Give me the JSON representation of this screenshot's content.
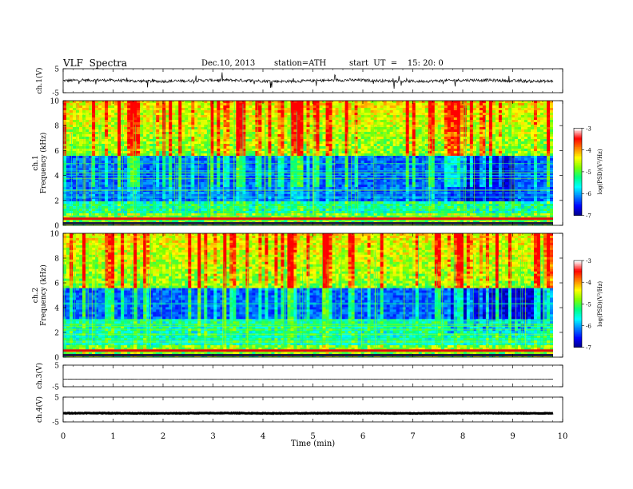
{
  "header": {
    "title": "VLF  Spectra",
    "date": "Dec.10, 2013",
    "station": "station=ATH",
    "start": "start  UT  =    15: 20: 0"
  },
  "chart_data": [
    {
      "type": "line",
      "panel": "ch1-waveform",
      "ylabel": "ch.1(V)",
      "ylim": [
        -5,
        5
      ],
      "yticks": [
        "5",
        "-5"
      ],
      "xlim": [
        0,
        10
      ],
      "series": [
        {
          "values_description_level": 0.0,
          "noise_amplitude": 0.6,
          "spikes": true
        }
      ]
    },
    {
      "type": "heatmap",
      "panel": "ch1-spectrogram",
      "ylabel": "ch.1\nFrequency  (kHz)",
      "ylim": [
        0,
        10
      ],
      "yticks": [
        "0",
        "2",
        "4",
        "6",
        "8",
        "10"
      ],
      "xlim": [
        0,
        9.8
      ],
      "colorbar": {
        "label": "log(PSD)(V²/Hz)",
        "range": [
          -7,
          -3
        ],
        "ticks": [
          "-3",
          "-4",
          "-5",
          "-6",
          "-7"
        ]
      },
      "features": {
        "sferic_band_kHz": [
          5.5,
          10
        ],
        "quiet_band_kHz": [
          2,
          5.5
        ],
        "strong_line_kHz": 0.5,
        "quiet_patch_min": [
          7.75,
          9.05
        ]
      }
    },
    {
      "type": "heatmap",
      "panel": "ch2-spectrogram",
      "ylabel": "ch.2\nFrequency  (kHz)",
      "ylim": [
        0,
        10
      ],
      "yticks": [
        "0",
        "2",
        "4",
        "6",
        "8",
        "10"
      ],
      "xlim": [
        0,
        9.8
      ],
      "colorbar": {
        "label": "log(PSD)(V²/Hz)",
        "range": [
          -7,
          -3
        ],
        "ticks": [
          "-3",
          "-4",
          "-5",
          "-6",
          "-7"
        ]
      },
      "features": {
        "sferic_band_kHz": [
          5.5,
          10
        ],
        "quiet_band_kHz": [
          3,
          5.5
        ],
        "strong_line_kHz": 0.5,
        "quiet_patch_min": [
          7.75,
          9.8
        ]
      }
    },
    {
      "type": "line",
      "panel": "ch3-waveform",
      "ylabel": "ch.3(V)",
      "ylim": [
        -5,
        5
      ],
      "yticks": [
        "5",
        "-5"
      ],
      "xlim": [
        0,
        9.8
      ],
      "series": [
        {
          "level": -1.5,
          "noise_amplitude": 0.05
        }
      ]
    },
    {
      "type": "line",
      "panel": "ch4-waveform",
      "ylabel": "ch.4(V)",
      "ylim": [
        -5,
        5
      ],
      "yticks": [
        "5",
        "-5"
      ],
      "xlim": [
        0,
        9.8
      ],
      "series": [
        {
          "level": -1.5,
          "noise_amplitude": 0.1,
          "thick": true
        }
      ]
    }
  ],
  "xaxis": {
    "label": "Time  (min)",
    "ticks": [
      "0",
      "1",
      "2",
      "3",
      "4",
      "5",
      "6",
      "7",
      "8",
      "9",
      "10"
    ]
  },
  "colors": {
    "colormap": [
      "#000080",
      "#0000ff",
      "#0080ff",
      "#00ffff",
      "#00ff80",
      "#80ff00",
      "#ffff00",
      "#ff8000",
      "#ff0000",
      "#ffffff"
    ],
    "line": "#000000"
  }
}
